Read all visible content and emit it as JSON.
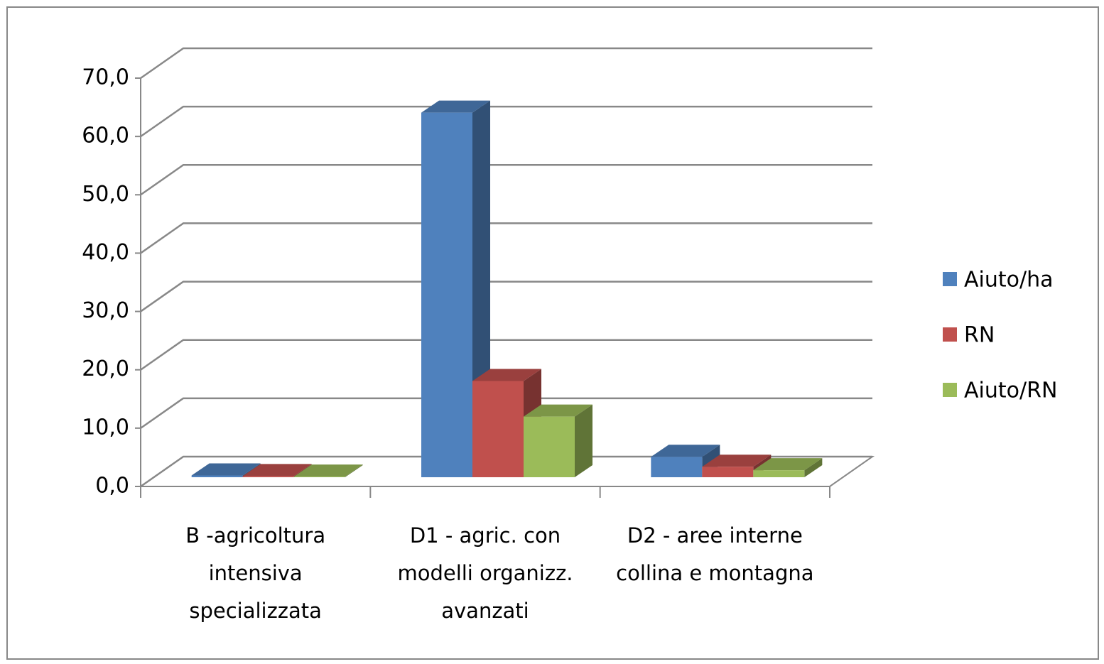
{
  "chart_data": {
    "type": "bar3d",
    "categories": [
      "B -agricoltura intensiva specializzata",
      "D1 - agric. con modelli organizz. avanzati",
      "D2 - aree interne collina e montagna"
    ],
    "series": [
      {
        "name": "Aiuto/ha",
        "color": "#4f81bd",
        "values": [
          0.3,
          62.5,
          3.5
        ]
      },
      {
        "name": "RN",
        "color": "#c0504d",
        "values": [
          0.2,
          16.5,
          1.8
        ]
      },
      {
        "name": "Aiuto/RN",
        "color": "#9bbb59",
        "values": [
          0.1,
          10.4,
          1.2
        ]
      }
    ],
    "ylim": [
      0,
      70
    ],
    "yticks": [
      {
        "value": 0,
        "label": "0,0"
      },
      {
        "value": 10,
        "label": "10,0"
      },
      {
        "value": 20,
        "label": "20,0"
      },
      {
        "value": 30,
        "label": "30,0"
      },
      {
        "value": 40,
        "label": "40,0"
      },
      {
        "value": 50,
        "label": "50,0"
      },
      {
        "value": 60,
        "label": "60,0"
      },
      {
        "value": 70,
        "label": "70,0"
      }
    ],
    "grid": true,
    "legend": "right"
  }
}
